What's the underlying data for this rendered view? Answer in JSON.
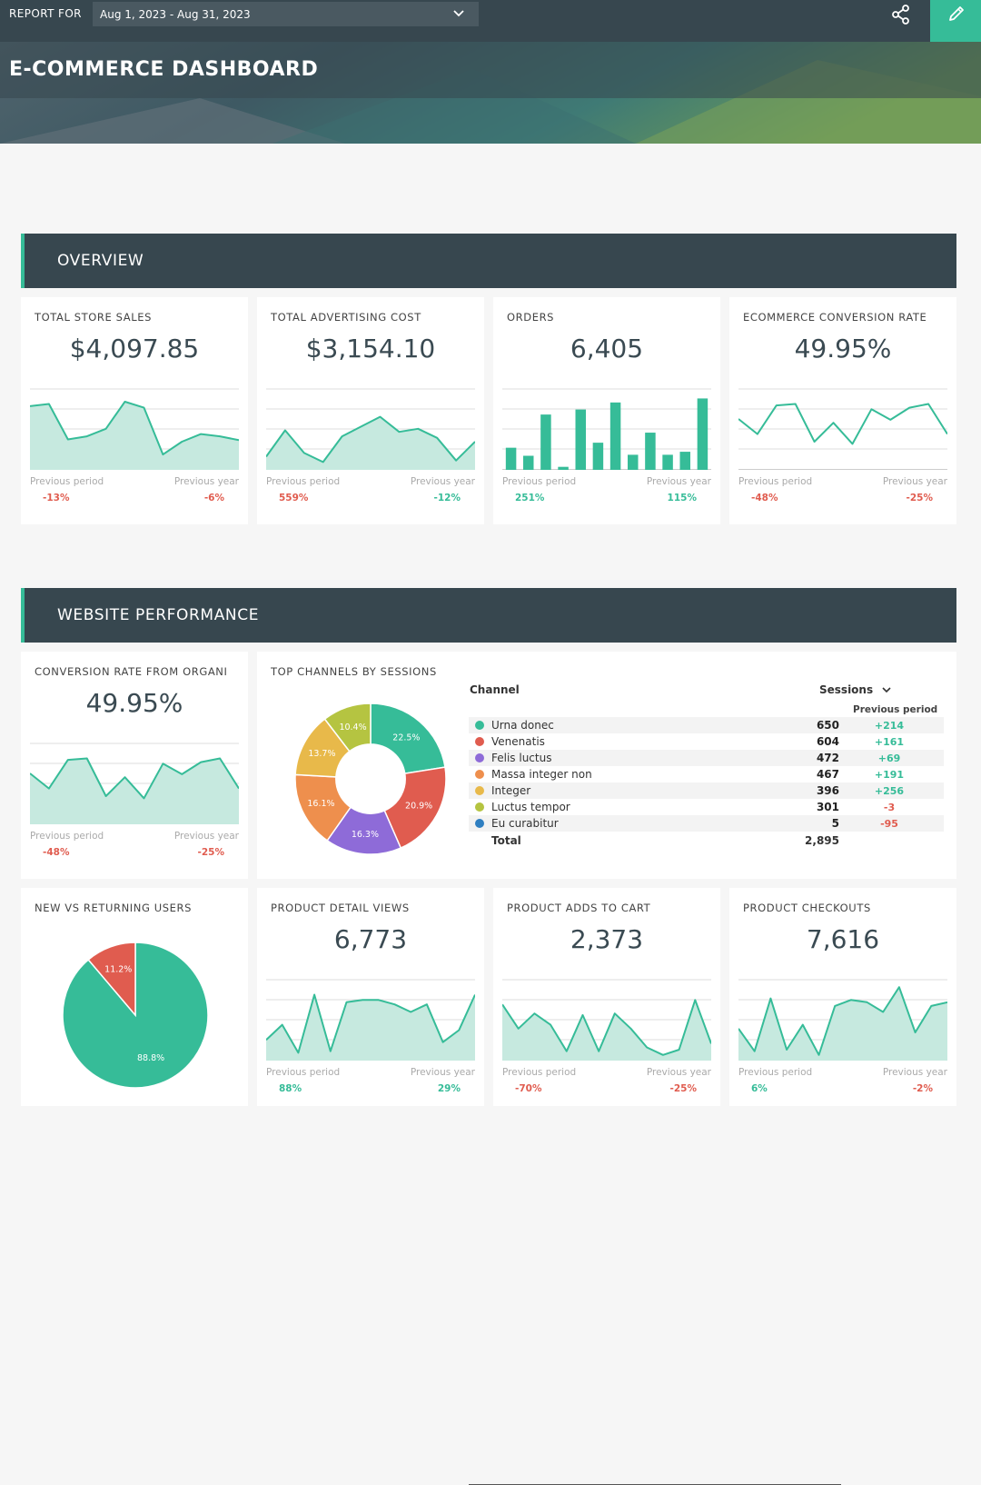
{
  "topbar": {
    "report_label": "REPORT FOR",
    "date_range": "Aug 1, 2023 - Aug 31, 2023",
    "share_icon": "share-icon",
    "edit_icon": "pencil-icon"
  },
  "banner": {
    "title": "E-COMMERCE DASHBOARD"
  },
  "sections": {
    "overview": "OVERVIEW",
    "website": "WEBSITE PERFORMANCE"
  },
  "compare_labels": {
    "prev_period": "Previous period",
    "prev_year": "Previous year"
  },
  "colors": {
    "accent": "#36bc98",
    "header": "#37474f",
    "negative": "#e05c4f",
    "positive": "#36bc98"
  },
  "widgets": {
    "store_sales": {
      "title": "TOTAL STORE SALES",
      "value": "$4,097.85",
      "prev_period": "-13%",
      "prev_year": "-6%"
    },
    "ad_cost": {
      "title": "TOTAL ADVERTISING COST",
      "value": "$3,154.10",
      "prev_period": "559%",
      "prev_year": "-12%"
    },
    "orders": {
      "title": "ORDERS",
      "value": "6,405",
      "prev_period": "251%",
      "prev_year": "115%"
    },
    "conv_rate": {
      "title": "ECOMMERCE CONVERSION RATE",
      "value": "49.95%",
      "prev_period": "-48%",
      "prev_year": "-25%"
    },
    "conv_organic": {
      "title": "CONVERSION RATE FROM ORGANI",
      "value": "49.95%",
      "prev_period": "-48%",
      "prev_year": "-25%"
    },
    "new_vs_returning": {
      "title": "NEW VS RETURNING USERS"
    },
    "detail_views": {
      "title": "PRODUCT DETAIL VIEWS",
      "value": "6,773",
      "prev_period": "88%",
      "prev_year": "29%"
    },
    "adds_to_cart": {
      "title": "PRODUCT ADDS TO CART",
      "value": "2,373",
      "prev_period": "-70%",
      "prev_year": "-25%"
    },
    "checkouts": {
      "title": "PRODUCT CHECKOUTS",
      "value": "7,616",
      "prev_period": "6%",
      "prev_year": "-2%"
    }
  },
  "channels": {
    "title": "TOP CHANNELS BY SESSIONS",
    "col_channel": "Channel",
    "col_sessions": "Sessions",
    "col_prev": "Previous period",
    "rows": [
      {
        "name": "Urna donec",
        "sessions": "650",
        "prev": "+214",
        "color": "#36bc98"
      },
      {
        "name": "Venenatis",
        "sessions": "604",
        "prev": "+161",
        "color": "#e05c4f"
      },
      {
        "name": "Felis luctus",
        "sessions": "472",
        "prev": "+69",
        "color": "#8e6bd8"
      },
      {
        "name": "Massa integer non",
        "sessions": "467",
        "prev": "+191",
        "color": "#ee8f4d"
      },
      {
        "name": "Integer",
        "sessions": "396",
        "prev": "+256",
        "color": "#e8b94a"
      },
      {
        "name": "Luctus tempor",
        "sessions": "301",
        "prev": "-3",
        "color": "#b5c441"
      },
      {
        "name": "Eu curabitur",
        "sessions": "5",
        "prev": "-95",
        "color": "#2f7fc1"
      }
    ],
    "total_label": "Total",
    "total_value": "2,895"
  },
  "chart_data": [
    {
      "type": "area",
      "widget": "store_sales",
      "values": [
        82,
        85,
        38,
        42,
        52,
        88,
        80,
        18,
        35,
        45,
        42,
        37
      ]
    },
    {
      "type": "area",
      "widget": "ad_cost",
      "values": [
        15,
        50,
        20,
        8,
        42,
        55,
        68,
        48,
        52,
        40,
        10,
        35
      ]
    },
    {
      "type": "bar",
      "widget": "orders",
      "values": [
        22,
        14,
        55,
        3,
        60,
        27,
        67,
        15,
        37,
        15,
        18,
        71
      ]
    },
    {
      "type": "line",
      "widget": "conv_rate",
      "values": [
        65,
        45,
        83,
        85,
        35,
        60,
        32,
        78,
        64,
        80,
        85,
        45
      ]
    },
    {
      "type": "area",
      "widget": "conv_organic",
      "values": [
        65,
        45,
        83,
        85,
        35,
        60,
        32,
        78,
        64,
        80,
        85,
        45
      ]
    },
    {
      "type": "pie",
      "widget": "channels",
      "categories": [
        "Urna donec",
        "Venenatis",
        "Felis luctus",
        "Massa integer non",
        "Integer",
        "Luctus tempor"
      ],
      "values": [
        22.5,
        20.9,
        16.3,
        16.1,
        13.7,
        10.4
      ],
      "labels": [
        "22.5%",
        "20.9%",
        "16.3%",
        "16.1%",
        "13.7%",
        "10.4%"
      ],
      "colors": [
        "#36bc98",
        "#e05c4f",
        "#8e6bd8",
        "#ee8f4d",
        "#e8b94a",
        "#b5c441"
      ]
    },
    {
      "type": "pie",
      "widget": "new_vs_returning",
      "values": [
        88.8,
        11.2
      ],
      "labels": [
        "88.8%",
        "11.2%"
      ],
      "colors": [
        "#36bc98",
        "#e05c4f"
      ]
    },
    {
      "type": "area",
      "widget": "detail_views",
      "values": [
        25,
        45,
        8,
        85,
        10,
        75,
        78,
        78,
        72,
        62,
        72,
        22,
        38,
        85
      ]
    },
    {
      "type": "area",
      "widget": "adds_to_cart",
      "values": [
        72,
        40,
        60,
        45,
        10,
        58,
        10,
        60,
        40,
        15,
        5,
        12,
        78,
        20
      ]
    },
    {
      "type": "area",
      "widget": "checkouts",
      "values": [
        40,
        10,
        80,
        12,
        45,
        5,
        70,
        78,
        75,
        62,
        95,
        35,
        70,
        75
      ]
    }
  ]
}
